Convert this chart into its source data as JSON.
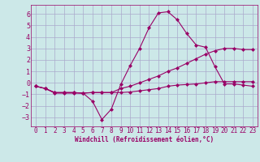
{
  "xlabel": "Windchill (Refroidissement éolien,°C)",
  "xlim": [
    -0.5,
    23.5
  ],
  "ylim": [
    -3.8,
    6.8
  ],
  "yticks": [
    -3,
    -2,
    -1,
    0,
    1,
    2,
    3,
    4,
    5,
    6
  ],
  "xticks": [
    0,
    1,
    2,
    3,
    4,
    5,
    6,
    7,
    8,
    9,
    10,
    11,
    12,
    13,
    14,
    15,
    16,
    17,
    18,
    19,
    20,
    21,
    22,
    23
  ],
  "bg_color": "#cce8e8",
  "grid_color": "#aaaacc",
  "line_color": "#990066",
  "line1_x": [
    0,
    1,
    2,
    3,
    4,
    5,
    6,
    7,
    8,
    9,
    10,
    11,
    12,
    13,
    14,
    15,
    16,
    17,
    18,
    19,
    20,
    21,
    22,
    23
  ],
  "line1_y": [
    -0.3,
    -0.5,
    -0.9,
    -0.9,
    -0.9,
    -0.9,
    -1.6,
    -3.2,
    -2.3,
    -0.15,
    1.5,
    3.0,
    4.8,
    6.1,
    6.2,
    5.5,
    4.3,
    3.3,
    3.1,
    1.4,
    -0.1,
    -0.1,
    -0.2,
    -0.3
  ],
  "line2_x": [
    0,
    1,
    2,
    3,
    4,
    5,
    6,
    7,
    8,
    9,
    10,
    11,
    12,
    13,
    14,
    15,
    16,
    17,
    18,
    19,
    20,
    21,
    22,
    23
  ],
  "line2_y": [
    -0.3,
    -0.5,
    -0.85,
    -0.85,
    -0.85,
    -0.9,
    -0.85,
    -0.85,
    -0.85,
    -0.5,
    -0.3,
    0.0,
    0.3,
    0.6,
    1.0,
    1.3,
    1.7,
    2.1,
    2.5,
    2.8,
    3.0,
    3.0,
    2.9,
    2.9
  ],
  "line3_x": [
    0,
    1,
    2,
    3,
    4,
    5,
    6,
    7,
    8,
    9,
    10,
    11,
    12,
    13,
    14,
    15,
    16,
    17,
    18,
    19,
    20,
    21,
    22,
    23
  ],
  "line3_y": [
    -0.3,
    -0.5,
    -0.85,
    -0.85,
    -0.85,
    -0.9,
    -0.85,
    -0.85,
    -0.85,
    -0.85,
    -0.8,
    -0.7,
    -0.6,
    -0.5,
    -0.3,
    -0.2,
    -0.15,
    -0.1,
    0.0,
    0.1,
    0.1,
    0.1,
    0.1,
    0.1
  ],
  "markersize": 2.5,
  "linewidth": 0.8
}
